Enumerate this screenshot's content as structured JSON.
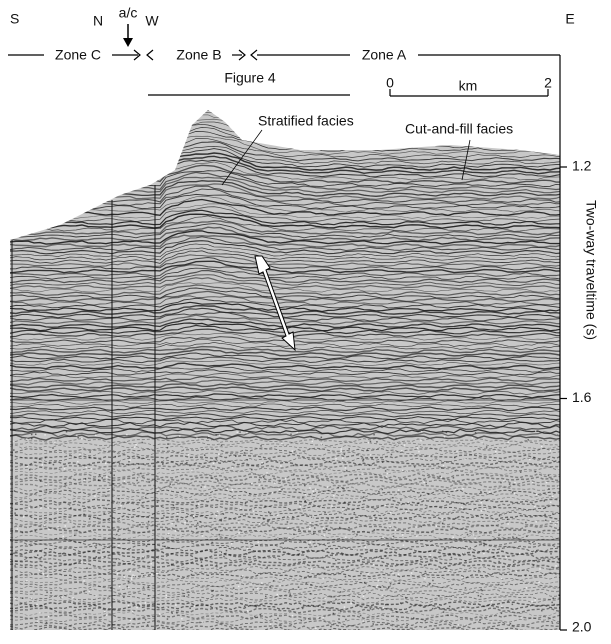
{
  "header": {
    "left": "S",
    "markers": [
      "N",
      "a/c",
      "W"
    ],
    "right": "E"
  },
  "zones": [
    "Zone C",
    "Zone B",
    "Zone A"
  ],
  "figure_ref": "Figure 4",
  "scale_bar": {
    "ticks": [
      0,
      2
    ],
    "unit": "km"
  },
  "annotations": [
    "Stratified facies",
    "Cut-and-fill facies"
  ],
  "axis": {
    "label": "Two-way traveltime (s)",
    "ticks": [
      1.2,
      1.6,
      {
        "value": 2,
        "label": "2.0"
      }
    ]
  }
}
